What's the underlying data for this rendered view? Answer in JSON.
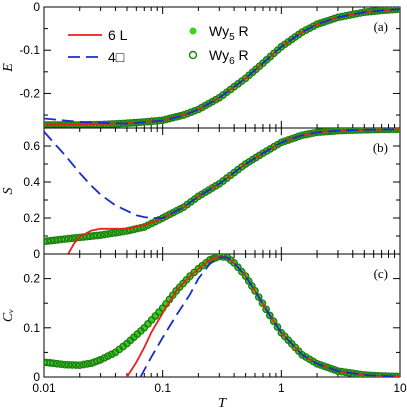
{
  "chart_data": [
    {
      "type": "line",
      "panel_tag": "(a)",
      "ylabel": "E",
      "ylim": [
        -0.28,
        0
      ],
      "yticks": [
        {
          "value": 0,
          "label": "0"
        },
        {
          "value": -0.1,
          "label": "-0.1"
        },
        {
          "value": -0.2,
          "label": "-0.2"
        }
      ],
      "x_scale": "log",
      "xlim": [
        0.01,
        10
      ],
      "series": [
        {
          "name": "6 L",
          "style": "solid",
          "color": "#e8211d",
          "x": [
            0.01,
            0.02,
            0.05,
            0.1,
            0.15,
            0.2,
            0.3,
            0.5,
            0.7,
            1,
            1.5,
            2,
            3,
            5,
            7,
            10
          ],
          "y": [
            -0.273,
            -0.272,
            -0.269,
            -0.262,
            -0.25,
            -0.237,
            -0.21,
            -0.165,
            -0.13,
            -0.092,
            -0.058,
            -0.04,
            -0.024,
            -0.012,
            -0.008,
            -0.005
          ]
        },
        {
          "name": "4□",
          "style": "dash",
          "color": "#1a2ccf",
          "x": [
            0.01,
            0.02,
            0.05,
            0.1,
            0.15,
            0.2,
            0.3,
            0.5,
            0.7,
            1,
            1.5,
            2,
            3,
            5,
            7,
            10
          ],
          "y": [
            -0.258,
            -0.266,
            -0.27,
            -0.263,
            -0.251,
            -0.237,
            -0.21,
            -0.165,
            -0.13,
            -0.092,
            -0.058,
            -0.04,
            -0.024,
            -0.012,
            -0.008,
            -0.005
          ]
        },
        {
          "name": "Wy5 R",
          "style": "filled",
          "color": "#39d318",
          "x": [
            0.01,
            0.015,
            0.02,
            0.03,
            0.05,
            0.07,
            0.1,
            0.15,
            0.2,
            0.3,
            0.5,
            0.7,
            1,
            1.5,
            2,
            3,
            5,
            7,
            10
          ],
          "y": [
            -0.273,
            -0.273,
            -0.273,
            -0.272,
            -0.269,
            -0.266,
            -0.262,
            -0.25,
            -0.237,
            -0.21,
            -0.165,
            -0.13,
            -0.092,
            -0.058,
            -0.04,
            -0.024,
            -0.012,
            -0.008,
            -0.005
          ]
        },
        {
          "name": "Wy6 R",
          "style": "open",
          "color": "#1e7d14",
          "x": [
            0.01,
            0.015,
            0.02,
            0.03,
            0.05,
            0.07,
            0.1,
            0.15,
            0.2,
            0.3,
            0.5,
            0.7,
            1,
            1.5,
            2,
            3,
            5,
            7,
            10
          ],
          "y": [
            -0.273,
            -0.273,
            -0.273,
            -0.272,
            -0.269,
            -0.266,
            -0.262,
            -0.25,
            -0.237,
            -0.21,
            -0.165,
            -0.13,
            -0.092,
            -0.058,
            -0.04,
            -0.024,
            -0.012,
            -0.008,
            -0.005
          ]
        }
      ]
    },
    {
      "type": "line",
      "panel_tag": "(b)",
      "ylabel": "S",
      "ylim": [
        0,
        0.7
      ],
      "yticks": [
        {
          "value": 0,
          "label": "0"
        },
        {
          "value": 0.2,
          "label": "0.2"
        },
        {
          "value": 0.4,
          "label": "0.4"
        },
        {
          "value": 0.6,
          "label": "0.6"
        }
      ],
      "x_scale": "log",
      "xlim": [
        0.01,
        10
      ],
      "series": [
        {
          "name": "6 L",
          "style": "solid",
          "color": "#e8211d",
          "x": [
            0.016,
            0.018,
            0.02,
            0.025,
            0.03,
            0.04,
            0.05,
            0.07,
            0.1,
            0.15,
            0.2,
            0.3,
            0.5,
            0.7,
            1,
            1.5,
            2,
            3,
            5,
            7,
            10
          ],
          "y": [
            0,
            0.06,
            0.095,
            0.13,
            0.14,
            0.14,
            0.14,
            0.16,
            0.2,
            0.26,
            0.32,
            0.39,
            0.5,
            0.56,
            0.62,
            0.66,
            0.676,
            0.685,
            0.69,
            0.692,
            0.693
          ]
        },
        {
          "name": "4□",
          "style": "dash",
          "color": "#1a2ccf",
          "x": [
            0.01,
            0.012,
            0.015,
            0.02,
            0.025,
            0.03,
            0.04,
            0.05,
            0.06,
            0.07,
            0.08,
            0.1,
            0.15,
            0.2,
            0.3,
            0.5,
            0.7,
            1,
            1.5,
            2,
            3,
            5,
            7,
            10
          ],
          "y": [
            0.68,
            0.62,
            0.55,
            0.45,
            0.38,
            0.33,
            0.27,
            0.24,
            0.215,
            0.205,
            0.2,
            0.2,
            0.26,
            0.32,
            0.39,
            0.5,
            0.56,
            0.62,
            0.66,
            0.676,
            0.685,
            0.69,
            0.692,
            0.693
          ]
        },
        {
          "name": "Wy5 R",
          "style": "filled",
          "color": "#39d318",
          "x": [
            0.01,
            0.015,
            0.02,
            0.03,
            0.05,
            0.07,
            0.1,
            0.15,
            0.2,
            0.3,
            0.5,
            0.7,
            1,
            1.5,
            2,
            3,
            5,
            7,
            10
          ],
          "y": [
            0.07,
            0.083,
            0.092,
            0.105,
            0.128,
            0.15,
            0.2,
            0.26,
            0.32,
            0.39,
            0.5,
            0.56,
            0.62,
            0.66,
            0.676,
            0.685,
            0.69,
            0.692,
            0.693
          ]
        },
        {
          "name": "Wy6 R",
          "style": "open",
          "color": "#1e7d14",
          "x": [
            0.01,
            0.015,
            0.02,
            0.03,
            0.05,
            0.07,
            0.1,
            0.15,
            0.2,
            0.3,
            0.5,
            0.7,
            1,
            1.5,
            2,
            3,
            5,
            7,
            10
          ],
          "y": [
            0.07,
            0.083,
            0.092,
            0.105,
            0.128,
            0.15,
            0.2,
            0.26,
            0.32,
            0.39,
            0.5,
            0.56,
            0.62,
            0.66,
            0.676,
            0.685,
            0.69,
            0.692,
            0.693
          ]
        }
      ]
    },
    {
      "type": "line",
      "panel_tag": "(c)",
      "ylabel": "Cᵥ",
      "xlabel": "T",
      "ylim": [
        0,
        0.25
      ],
      "yticks": [
        {
          "value": 0,
          "label": "0"
        },
        {
          "value": 0.1,
          "label": "0.1"
        },
        {
          "value": 0.2,
          "label": "0.2"
        }
      ],
      "x_scale": "log",
      "xlim": [
        0.01,
        10
      ],
      "xticks": [
        {
          "value": 0.01,
          "label": "0.01"
        },
        {
          "value": 0.1,
          "label": "0.1"
        },
        {
          "value": 1,
          "label": "1"
        },
        {
          "value": 10,
          "label": "10"
        }
      ],
      "series": [
        {
          "name": "6 L",
          "style": "solid",
          "color": "#e8211d",
          "x": [
            0.05,
            0.06,
            0.07,
            0.08,
            0.1,
            0.13,
            0.17,
            0.2,
            0.25,
            0.3,
            0.35,
            0.4,
            0.5,
            0.6,
            0.8,
            1,
            1.5,
            2,
            3,
            5,
            7,
            10
          ],
          "y": [
            0,
            0.03,
            0.06,
            0.09,
            0.13,
            0.175,
            0.205,
            0.22,
            0.238,
            0.245,
            0.243,
            0.232,
            0.205,
            0.175,
            0.125,
            0.09,
            0.045,
            0.027,
            0.012,
            0.004,
            0.002,
            0.001
          ]
        },
        {
          "name": "4□",
          "style": "dash",
          "color": "#1a2ccf",
          "x": [
            0.065,
            0.08,
            0.1,
            0.13,
            0.17,
            0.2,
            0.25,
            0.3,
            0.35,
            0.4,
            0.5,
            0.6,
            0.8,
            1,
            1.5,
            2,
            3,
            5,
            7,
            10
          ],
          "y": [
            0,
            0.04,
            0.08,
            0.125,
            0.168,
            0.2,
            0.23,
            0.243,
            0.243,
            0.232,
            0.205,
            0.175,
            0.125,
            0.09,
            0.045,
            0.027,
            0.012,
            0.004,
            0.002,
            0.001
          ]
        },
        {
          "name": "Wy5 R",
          "style": "filled",
          "color": "#39d318",
          "x": [
            0.01,
            0.012,
            0.015,
            0.02,
            0.025,
            0.03,
            0.04,
            0.05,
            0.07,
            0.1,
            0.13,
            0.17,
            0.2,
            0.25,
            0.3,
            0.35,
            0.4,
            0.5,
            0.6,
            0.8,
            1,
            1.5,
            2,
            3,
            5,
            7,
            10
          ],
          "y": [
            0.03,
            0.028,
            0.025,
            0.024,
            0.028,
            0.035,
            0.05,
            0.068,
            0.1,
            0.14,
            0.175,
            0.205,
            0.22,
            0.238,
            0.245,
            0.243,
            0.232,
            0.205,
            0.175,
            0.125,
            0.09,
            0.045,
            0.027,
            0.012,
            0.004,
            0.002,
            0.001
          ]
        },
        {
          "name": "Wy6 R",
          "style": "open",
          "color": "#1e7d14",
          "x": [
            0.01,
            0.012,
            0.015,
            0.02,
            0.025,
            0.03,
            0.04,
            0.05,
            0.07,
            0.1,
            0.13,
            0.17,
            0.2,
            0.25,
            0.3,
            0.35,
            0.4,
            0.5,
            0.6,
            0.8,
            1,
            1.5,
            2,
            3,
            5,
            7,
            10
          ],
          "y": [
            0.03,
            0.028,
            0.025,
            0.024,
            0.028,
            0.035,
            0.05,
            0.068,
            0.1,
            0.14,
            0.175,
            0.205,
            0.22,
            0.238,
            0.245,
            0.243,
            0.232,
            0.205,
            0.175,
            0.125,
            0.09,
            0.045,
            0.027,
            0.012,
            0.004,
            0.002,
            0.001
          ]
        }
      ]
    }
  ],
  "legend": {
    "placement": "top-left of panel (a)",
    "items": [
      {
        "label": "6 L",
        "style": "solid",
        "color": "#e8211d"
      },
      {
        "label": "4□",
        "style": "dash",
        "color": "#1a2ccf"
      },
      {
        "label": "Wy",
        "sub": "5",
        "suffix": " R",
        "style": "filled",
        "color": "#39d318"
      },
      {
        "label": "Wy",
        "sub": "6",
        "suffix": " R",
        "style": "open",
        "color": "#1e7d14"
      }
    ]
  }
}
